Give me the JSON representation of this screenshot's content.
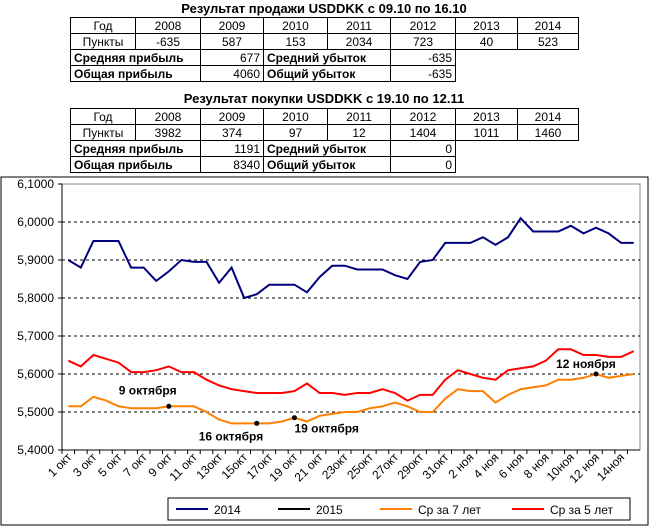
{
  "sell": {
    "title": "Результат продажи USDDKK с 09.10 по 16.10",
    "header": [
      "Год",
      "2008",
      "2009",
      "2010",
      "2011",
      "2012",
      "2013",
      "2014"
    ],
    "points_label": "Пункты",
    "points": [
      -635,
      587,
      153,
      2034,
      723,
      40,
      523
    ],
    "avg_profit_label": "Средняя прибыль",
    "avg_profit": 677,
    "avg_loss_label": "Средний убыток",
    "avg_loss": -635,
    "total_profit_label": "Общая прибыль",
    "total_profit": 4060,
    "total_loss_label": "Общий убыток",
    "total_loss": -635
  },
  "buy": {
    "title": "Результат покупки USDDKK с 19.10 по 12.11",
    "header": [
      "Год",
      "2008",
      "2009",
      "2010",
      "2011",
      "2012",
      "2013",
      "2014"
    ],
    "points_label": "Пункты",
    "points": [
      3982,
      374,
      97,
      12,
      1404,
      1011,
      1460
    ],
    "avg_profit_label": "Средняя прибыль",
    "avg_profit": 1191,
    "avg_loss_label": "Средний убыток",
    "avg_loss": 0,
    "total_profit_label": "Общая прибыль",
    "total_profit": 8340,
    "total_loss_label": "Общий убыток",
    "total_loss": 0
  },
  "chart_data": {
    "type": "line",
    "categories": [
      "1 окт",
      null,
      "3 окт",
      null,
      "5 окт",
      null,
      "7 окт",
      null,
      "9 окт",
      null,
      "11 окт",
      null,
      "13окт",
      null,
      "15окт",
      null,
      "17окт",
      null,
      "19 окт",
      null,
      "21 окт",
      null,
      "23окт",
      null,
      "25окт",
      null,
      "27окт",
      null,
      "29окт",
      null,
      "31окт",
      null,
      "2 ноя",
      null,
      "4 ноя",
      null,
      "6 ноя",
      null,
      "8 ноя",
      null,
      "10ноя",
      null,
      "12 ноя",
      null,
      "14ноя",
      null
    ],
    "series": [
      {
        "name": "2014",
        "color": "#00007f",
        "values": [
          5.9,
          5.88,
          5.95,
          5.95,
          5.95,
          5.88,
          5.88,
          5.845,
          5.87,
          5.9,
          5.895,
          5.895,
          5.84,
          5.88,
          5.8,
          5.81,
          5.835,
          5.835,
          5.835,
          5.815,
          5.855,
          5.885,
          5.885,
          5.875,
          5.875,
          5.875,
          5.86,
          5.85,
          5.895,
          5.9,
          5.945,
          5.945,
          5.945,
          5.96,
          5.94,
          5.96,
          6.01,
          5.975,
          5.975,
          5.975,
          5.99,
          5.97,
          5.985,
          5.97,
          5.945,
          5.945
        ]
      },
      {
        "name": "2015",
        "color": "#000000",
        "values": [
          null,
          null,
          null,
          null,
          null,
          null,
          null,
          null,
          null,
          null,
          null,
          null,
          null,
          null,
          null,
          null,
          null,
          null,
          null,
          null,
          null,
          null,
          null,
          null,
          null,
          null,
          null,
          null,
          null,
          null,
          null,
          null,
          null,
          null,
          null,
          null,
          null,
          null,
          null,
          null,
          null,
          null,
          null,
          null,
          null,
          null
        ]
      },
      {
        "name": "Ср за 7 лет",
        "color": "#ff7f00",
        "values": [
          5.515,
          5.515,
          5.54,
          5.53,
          5.515,
          5.51,
          5.51,
          5.51,
          5.515,
          5.515,
          5.515,
          5.5,
          5.48,
          5.47,
          5.47,
          5.47,
          5.47,
          5.475,
          5.485,
          5.475,
          5.49,
          5.495,
          5.5,
          5.5,
          5.51,
          5.515,
          5.525,
          5.515,
          5.5,
          5.5,
          5.535,
          5.56,
          5.555,
          5.555,
          5.525,
          5.545,
          5.56,
          5.565,
          5.57,
          5.585,
          5.585,
          5.59,
          5.6,
          5.59,
          5.595,
          5.6
        ]
      },
      {
        "name": "Ср за 5 лет",
        "color": "#ff0000",
        "values": [
          5.635,
          5.62,
          5.65,
          5.64,
          5.63,
          5.605,
          5.605,
          5.61,
          5.62,
          5.605,
          5.605,
          5.585,
          5.57,
          5.56,
          5.555,
          5.55,
          5.55,
          5.55,
          5.555,
          5.575,
          5.55,
          5.55,
          5.545,
          5.55,
          5.55,
          5.56,
          5.55,
          5.53,
          5.545,
          5.545,
          5.585,
          5.61,
          5.6,
          5.59,
          5.585,
          5.61,
          5.615,
          5.62,
          5.635,
          5.665,
          5.665,
          5.65,
          5.65,
          5.645,
          5.645,
          5.66
        ]
      }
    ],
    "ylim": [
      5.4,
      6.1
    ],
    "yticks": [
      {
        "value": 5.4,
        "label": "5,4000"
      },
      {
        "value": 5.5,
        "label": "5,5000"
      },
      {
        "value": 5.6,
        "label": "5,6000"
      },
      {
        "value": 5.7,
        "label": "5,7000"
      },
      {
        "value": 5.8,
        "label": "5,8000"
      },
      {
        "value": 5.9,
        "label": "5,9000"
      },
      {
        "value": 6.0,
        "label": "6,0000"
      },
      {
        "value": 6.1,
        "label": "6,1000"
      }
    ],
    "grid": true,
    "legend": "bottom",
    "annotations": [
      "9 октября",
      "16 октября",
      "19 октября",
      "12 ноября"
    ]
  }
}
